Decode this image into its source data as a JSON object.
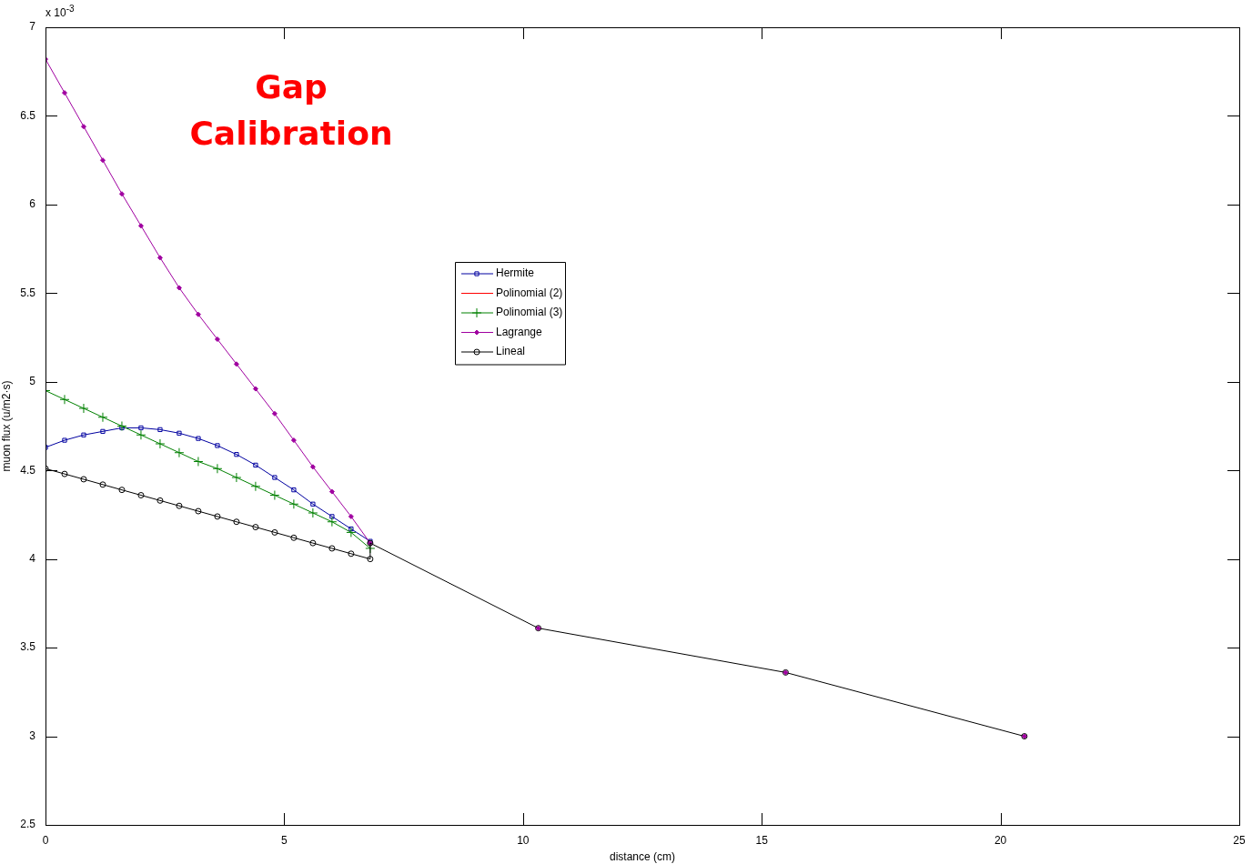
{
  "chart_data": {
    "type": "line",
    "xlabel": "distance (cm)",
    "ylabel": "muon flux (u/m2·s)",
    "annotations": [
      "Gap Calibration",
      "x 10$^{-3}$"
    ],
    "xlim": [
      0,
      25
    ],
    "xticks": [
      0,
      5,
      10,
      15,
      20,
      25
    ],
    "ylim": [
      2.5,
      7
    ],
    "yticks": [
      2.5,
      3,
      3.5,
      4,
      4.5,
      5,
      5.5,
      6,
      6.5,
      7
    ],
    "grid": false,
    "legend": "top",
    "line_style": "solid",
    "series": [
      {
        "name": "Hermite",
        "color": "#0000a0",
        "marker": "square",
        "x": [
          0,
          0.4,
          0.8,
          1.2,
          1.6,
          2.0,
          2.4,
          2.8,
          3.2,
          3.6,
          4.0,
          4.4,
          4.8,
          5.2,
          5.6,
          6.0,
          6.4,
          6.8
        ],
        "values": [
          4.63,
          4.67,
          4.7,
          4.72,
          4.74,
          4.74,
          4.73,
          4.71,
          4.68,
          4.64,
          4.59,
          4.53,
          4.46,
          4.39,
          4.31,
          4.24,
          4.17,
          4.1
        ]
      },
      {
        "name": "Polinomial (2)",
        "color": "#ff0000",
        "marker": "none"
      },
      {
        "name": "Polinomial (3)",
        "color": "#008000",
        "marker": "cross",
        "x": [
          0,
          0.4,
          0.8,
          1.2,
          1.6,
          2.0,
          2.4,
          2.8,
          3.2,
          3.6,
          4.0,
          4.4,
          4.8,
          5.2,
          5.6,
          6.0,
          6.4,
          6.8
        ],
        "values": [
          4.95,
          4.9,
          4.85,
          4.8,
          4.75,
          4.7,
          4.65,
          4.6,
          4.55,
          4.51,
          4.46,
          4.41,
          4.36,
          4.31,
          4.26,
          4.21,
          4.15,
          4.06
        ]
      },
      {
        "name": "Lagrange",
        "color": "#a000a0",
        "marker": "diamond",
        "x": [
          0,
          0.4,
          0.8,
          1.2,
          1.6,
          2.0,
          2.4,
          2.8,
          3.2,
          3.6,
          4.0,
          4.4,
          4.8,
          5.2,
          5.6,
          6.0,
          6.4,
          6.8
        ],
        "values": [
          6.82,
          6.63,
          6.44,
          6.25,
          6.06,
          5.88,
          5.7,
          5.53,
          5.38,
          5.24,
          5.1,
          4.96,
          4.82,
          4.67,
          4.52,
          4.38,
          4.24,
          4.09
        ]
      },
      {
        "name": "Lineal",
        "color": "#000000",
        "marker": "circle",
        "x": [
          0,
          0.4,
          0.8,
          1.2,
          1.6,
          2.0,
          2.4,
          2.8,
          3.2,
          3.6,
          4.0,
          4.4,
          4.8,
          5.2,
          5.6,
          6.0,
          6.4,
          6.8,
          6.8,
          10.32,
          15.5,
          20.5
        ],
        "values": [
          4.51,
          4.48,
          4.45,
          4.42,
          4.39,
          4.36,
          4.33,
          4.3,
          4.27,
          4.24,
          4.21,
          4.18,
          4.15,
          4.12,
          4.09,
          4.06,
          4.03,
          4.0,
          4.09,
          3.61,
          3.36,
          3.0
        ]
      },
      {
        "type": "scatter",
        "color": "#a000a0",
        "marker": "diamond",
        "x": [
          10.32,
          15.5,
          20.5
        ],
        "values": [
          3.61,
          3.36,
          3.0
        ]
      }
    ]
  }
}
